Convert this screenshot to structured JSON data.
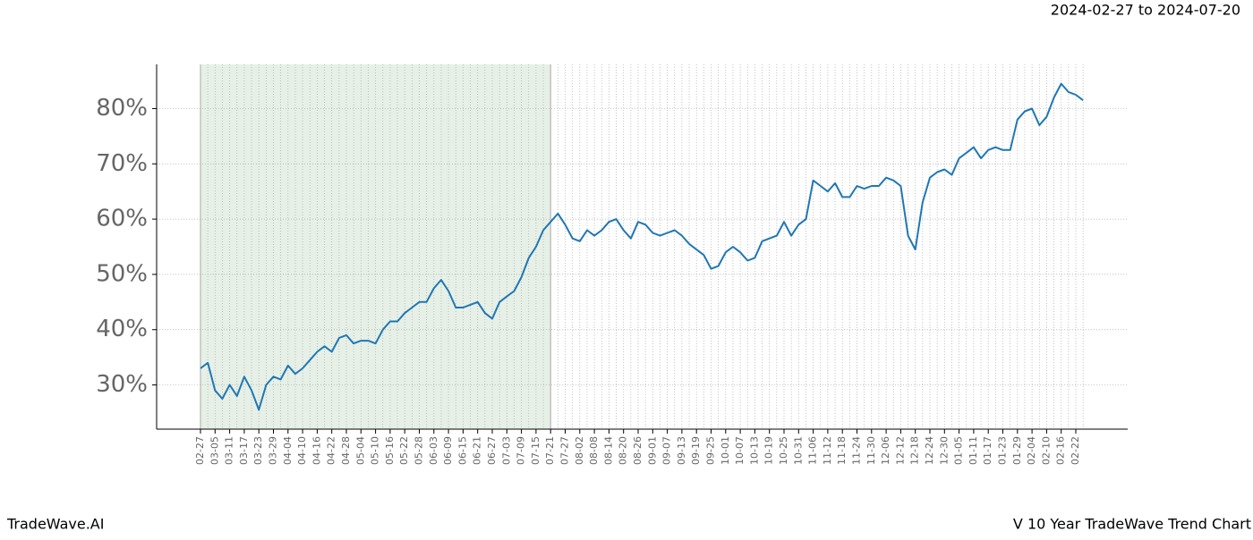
{
  "chart_data": {
    "type": "line",
    "subtitle": "2024-02-27 to 2024-07-20",
    "footer_left": "TradeWave.AI",
    "footer_right": "V 10 Year TradeWave Trend Chart",
    "categories": [
      "02-27",
      null,
      "03-05",
      null,
      "03-11",
      null,
      "03-17",
      null,
      "03-23",
      null,
      "03-29",
      null,
      "04-04",
      null,
      "04-10",
      null,
      "04-16",
      null,
      "04-22",
      null,
      "04-28",
      null,
      "05-04",
      null,
      "05-10",
      null,
      "05-16",
      null,
      "05-22",
      null,
      "05-28",
      null,
      "06-03",
      null,
      "06-09",
      null,
      "06-15",
      null,
      "06-21",
      null,
      "06-27",
      null,
      "07-03",
      null,
      "07-09",
      null,
      "07-15",
      null,
      "07-21",
      null,
      "07-27",
      null,
      "08-02",
      null,
      "08-08",
      null,
      "08-14",
      null,
      "08-20",
      null,
      "08-26",
      null,
      "09-01",
      null,
      "09-07",
      null,
      "09-13",
      null,
      "09-19",
      null,
      "09-25",
      null,
      "10-01",
      null,
      "10-07",
      null,
      "10-13",
      null,
      "10-19",
      null,
      "10-25",
      null,
      "10-31",
      null,
      "11-06",
      null,
      "11-12",
      null,
      "11-18",
      null,
      "11-24",
      null,
      "11-30",
      null,
      "12-06",
      null,
      "12-12",
      null,
      "12-18",
      null,
      "12-24",
      null,
      "12-30",
      null,
      "01-05",
      null,
      "01-11",
      null,
      "01-17",
      null,
      "01-23",
      null,
      "01-29",
      null,
      "02-04",
      null,
      "02-10",
      null,
      "02-16",
      null,
      "02-22",
      null
    ],
    "series": [
      {
        "color": "#1f77b4",
        "values": [
          33,
          34,
          29,
          27.5,
          30,
          28,
          31.5,
          29,
          25.5,
          30,
          31.5,
          31,
          33.5,
          32,
          33,
          34.5,
          36,
          37,
          36,
          38.5,
          39,
          37.5,
          38,
          38,
          37.5,
          40,
          41.5,
          41.5,
          43,
          44,
          45,
          45,
          47.5,
          49,
          47,
          44,
          44,
          44.5,
          45,
          43,
          42,
          45,
          46,
          47,
          49.5,
          53,
          55,
          58,
          59.5,
          61,
          59,
          56.5,
          56,
          58,
          57,
          58,
          59.5,
          60,
          58,
          56.5,
          59.5,
          59,
          57.5,
          57,
          57.5,
          58,
          57,
          55.5,
          54.5,
          53.5,
          51,
          51.5,
          54,
          55,
          54,
          52.5,
          53,
          56,
          56.5,
          57,
          59.5,
          57,
          59,
          60,
          67,
          66,
          65,
          66.5,
          64,
          64,
          66,
          65.5,
          66,
          66,
          67.5,
          67,
          66,
          57,
          54.5,
          63,
          67.5,
          68.5,
          69,
          68,
          71,
          72,
          73,
          71,
          72.5,
          73,
          72.5,
          72.5,
          78,
          79.5,
          80,
          77,
          78.5,
          82,
          84.5,
          83,
          82.5,
          81.5
        ]
      }
    ],
    "span": {
      "start": "02-27",
      "end": "07-21",
      "color": "#e6f0e6"
    },
    "ylim": [
      22,
      88
    ],
    "yticks": [
      {
        "value": 30,
        "label": "30%"
      },
      {
        "value": 40,
        "label": "40%"
      },
      {
        "value": 50,
        "label": "50%"
      },
      {
        "value": 60,
        "label": "60%"
      },
      {
        "value": 70,
        "label": "70%"
      },
      {
        "value": 80,
        "label": "80%"
      }
    ],
    "grid": true
  }
}
